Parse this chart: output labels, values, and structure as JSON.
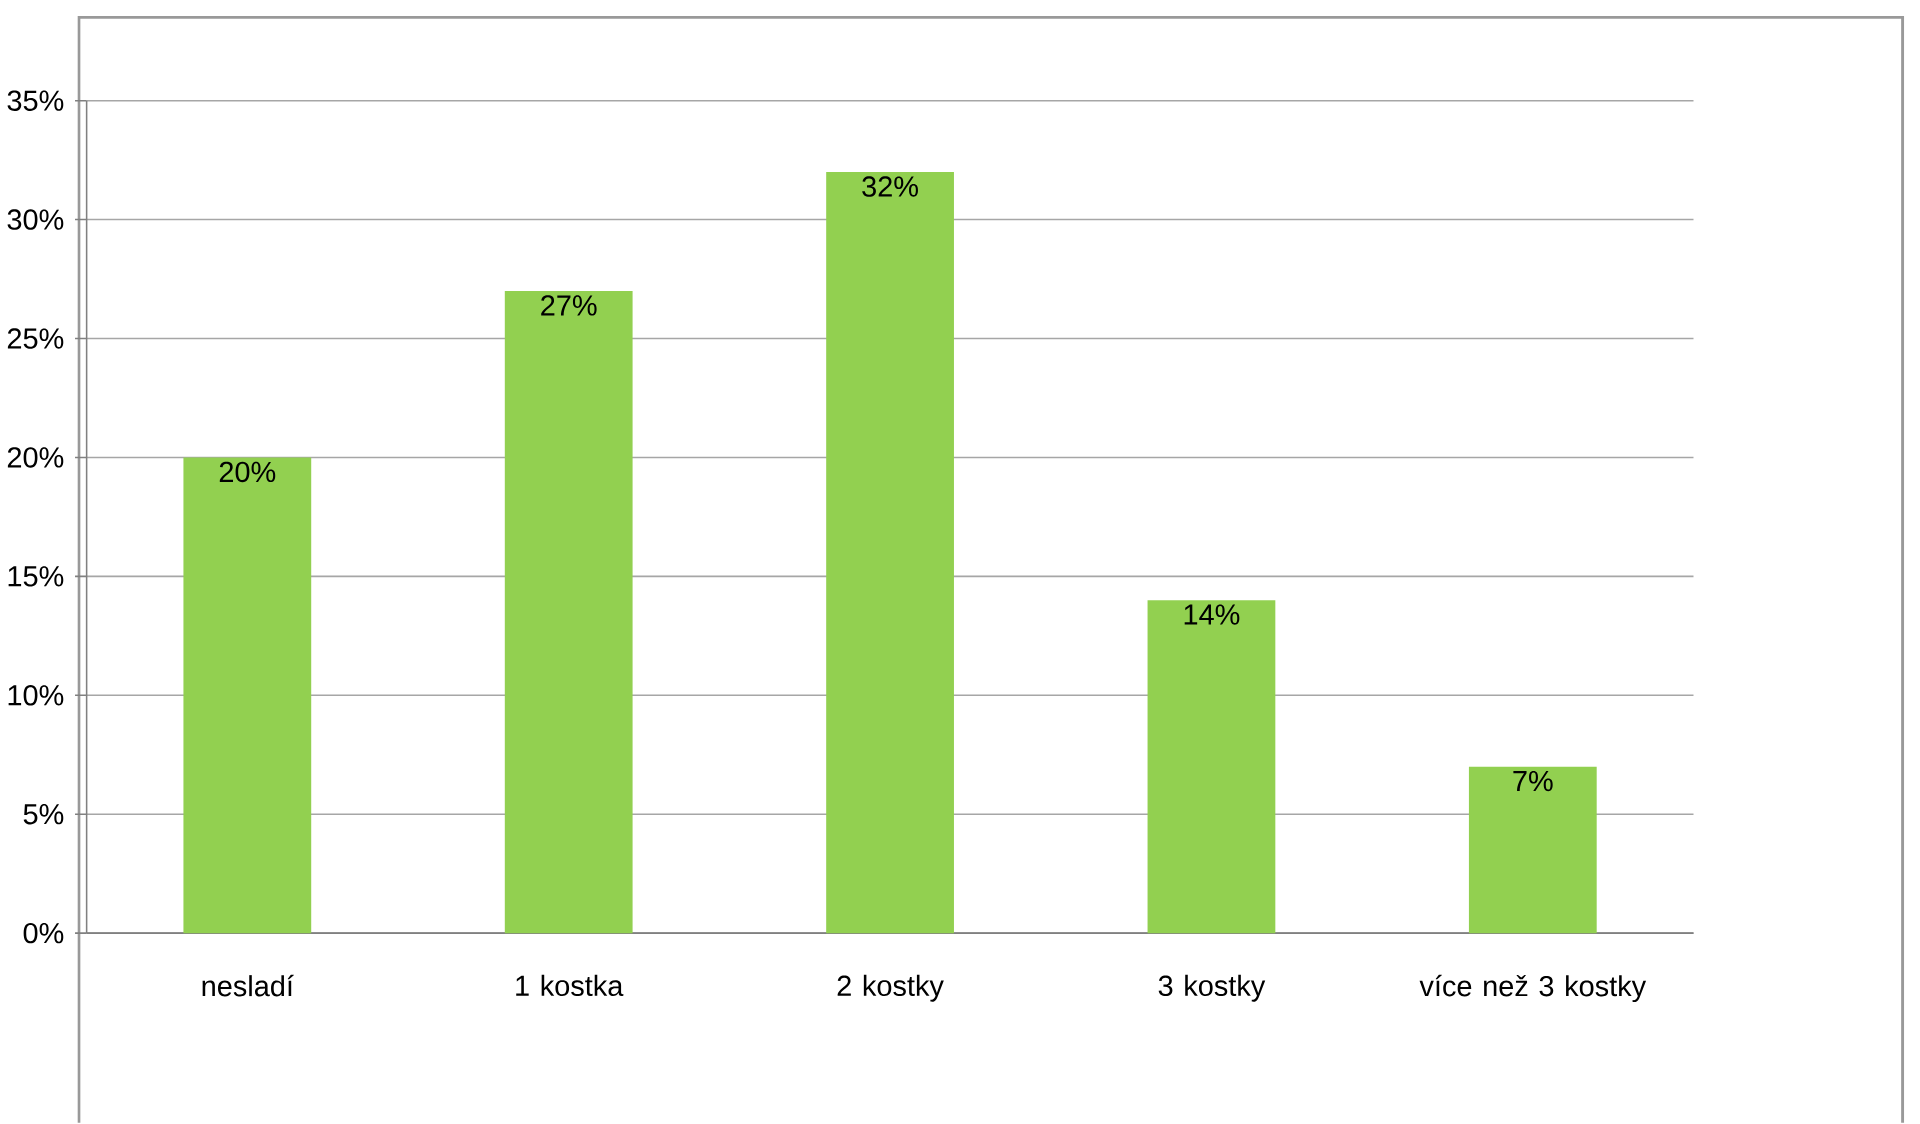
{
  "chart_data": {
    "type": "bar",
    "categories": [
      "nesladí",
      "1 kostka",
      "2 kostky",
      "3 kostky",
      "více než 3 kostky"
    ],
    "values": [
      20,
      27,
      32,
      14,
      7
    ],
    "value_labels": [
      "20%",
      "27%",
      "32%",
      "14%",
      "7%"
    ],
    "color": "#92d050",
    "ylim": [
      0,
      35
    ],
    "yticks": [
      {
        "value": 0,
        "label": "0%"
      },
      {
        "value": 5,
        "label": "5%"
      },
      {
        "value": 10,
        "label": "10%"
      },
      {
        "value": 15,
        "label": "15%"
      },
      {
        "value": 20,
        "label": "20%"
      },
      {
        "value": 25,
        "label": "25%"
      },
      {
        "value": 30,
        "label": "30%"
      },
      {
        "value": 35,
        "label": "35%"
      }
    ],
    "grid": "y"
  }
}
